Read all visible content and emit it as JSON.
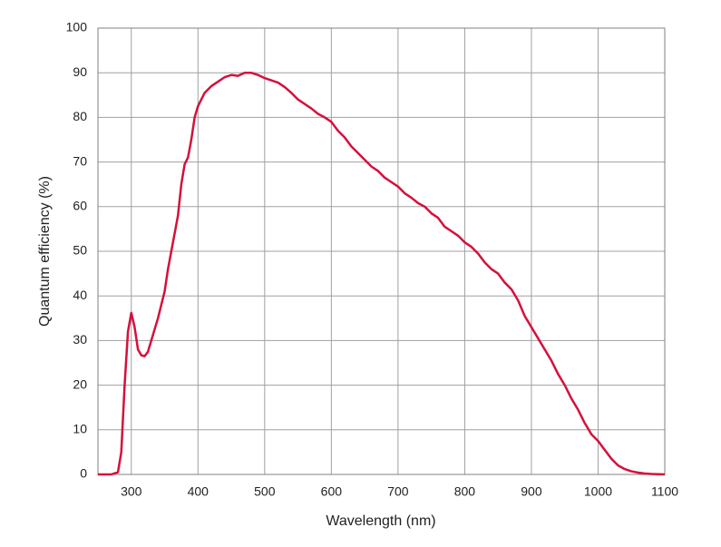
{
  "chart_data": {
    "type": "line",
    "x_label": "Wavelength (nm)",
    "y_label": "Quantum efficiency (%)",
    "x": [
      250,
      270,
      280,
      285,
      290,
      295,
      300,
      305,
      310,
      315,
      320,
      325,
      330,
      340,
      350,
      355,
      360,
      370,
      375,
      380,
      385,
      390,
      395,
      400,
      410,
      420,
      430,
      440,
      450,
      460,
      470,
      480,
      490,
      500,
      510,
      520,
      530,
      540,
      550,
      560,
      570,
      580,
      590,
      600,
      610,
      620,
      630,
      640,
      650,
      660,
      670,
      680,
      690,
      700,
      710,
      720,
      730,
      740,
      750,
      760,
      770,
      780,
      790,
      800,
      810,
      820,
      830,
      840,
      850,
      860,
      870,
      880,
      890,
      900,
      910,
      920,
      930,
      940,
      950,
      960,
      970,
      980,
      990,
      1000,
      1010,
      1020,
      1030,
      1040,
      1050,
      1060,
      1070,
      1080,
      1100
    ],
    "series": [
      {
        "color": "#d5103b",
        "values": [
          0,
          0,
          0.5,
          5,
          20,
          32,
          36.2,
          33,
          28,
          26.7,
          26.5,
          27.5,
          30,
          35,
          41,
          46,
          50,
          58,
          65,
          69.5,
          71,
          75,
          80,
          82.5,
          85.5,
          87,
          88,
          89,
          89.5,
          89.3,
          90,
          90,
          89.5,
          88.8,
          88.3,
          87.8,
          86.8,
          85.5,
          84,
          83,
          82,
          80.8,
          80,
          79,
          77,
          75.5,
          73.5,
          72,
          70.5,
          69,
          68,
          66.5,
          65.5,
          64.5,
          63,
          62,
          60.8,
          60,
          58.5,
          57.5,
          55.5,
          54.5,
          53.5,
          52,
          51,
          49.5,
          47.5,
          46,
          45,
          43,
          41.5,
          39,
          35.5,
          33,
          30.5,
          28,
          25.5,
          22.5,
          20,
          17,
          14.5,
          11.5,
          9,
          7.5,
          5.5,
          3.5,
          2,
          1.2,
          0.7,
          0.4,
          0.2,
          0.1,
          0
        ]
      }
    ],
    "xlim": [
      250,
      1100
    ],
    "xticks": [
      300,
      400,
      500,
      600,
      700,
      800,
      900,
      1000,
      1100
    ],
    "ylim": [
      0,
      100
    ],
    "yticks": [
      0,
      10,
      20,
      30,
      40,
      50,
      60,
      70,
      80,
      90,
      100
    ],
    "grid": true
  }
}
